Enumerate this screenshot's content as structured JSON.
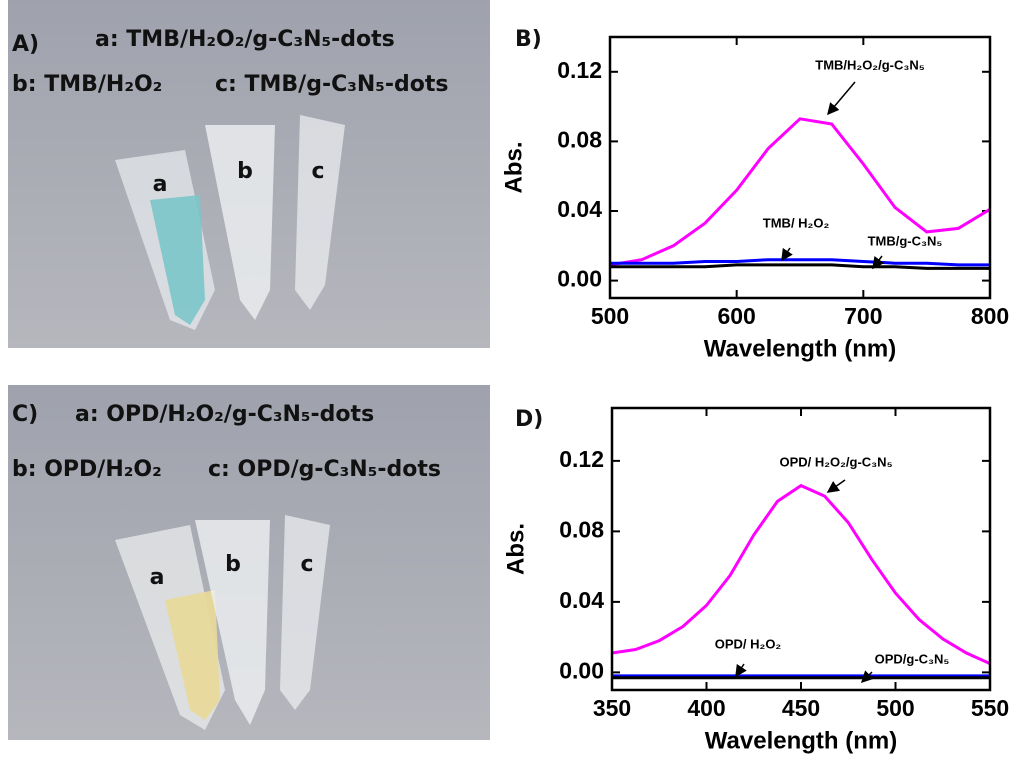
{
  "photos": [
    {
      "panel_label": "A)",
      "lines": [
        "a: TMB/H₂O₂/g-C₃N₅-dots",
        "b: TMB/H₂O₂",
        "c: TMB/g-C₃N₅-dots"
      ],
      "tubes": [
        "a",
        "b",
        "c"
      ]
    },
    {
      "panel_label": "C)",
      "lines": [
        "a: OPD/H₂O₂/g-C₃N₅-dots",
        "b: OPD/H₂O₂",
        "c: OPD/g-C₃N₅-dots"
      ],
      "tubes": [
        "a",
        "b",
        "c"
      ]
    }
  ],
  "chart_data": [
    {
      "type": "line",
      "panel_label": "B)",
      "x_label": "Wavelength (nm)",
      "y_label": "Abs.",
      "xlim": [
        500,
        800
      ],
      "ylim": [
        -0.01,
        0.14
      ],
      "xticks": [
        500,
        600,
        700,
        800
      ],
      "yticks": [
        {
          "value": 0,
          "label": "0.00"
        },
        0.04,
        0.08,
        0.12
      ],
      "x": [
        500,
        525,
        550,
        575,
        600,
        625,
        650,
        675,
        700,
        725,
        750,
        775,
        800
      ],
      "series": [
        {
          "name": "TMB/H₂O₂/g-C₃N₅",
          "color": "#ff00ff",
          "values": [
            0.009,
            0.012,
            0.02,
            0.033,
            0.052,
            0.076,
            0.093,
            0.09,
            0.067,
            0.042,
            0.028,
            0.03,
            0.041
          ]
        },
        {
          "name": "TMB/ H₂O₂",
          "color": "#0000ff",
          "values": [
            0.01,
            0.01,
            0.01,
            0.011,
            0.011,
            0.012,
            0.012,
            0.012,
            0.011,
            0.01,
            0.01,
            0.009,
            0.009
          ]
        },
        {
          "name": "TMB/g-C₃N₅",
          "color": "#000000",
          "values": [
            0.008,
            0.008,
            0.008,
            0.008,
            0.009,
            0.009,
            0.009,
            0.009,
            0.008,
            0.008,
            0.007,
            0.007,
            0.007
          ]
        }
      ]
    },
    {
      "type": "line",
      "panel_label": "D)",
      "x_label": "Wavelength (nm)",
      "y_label": "Abs.",
      "xlim": [
        350,
        550
      ],
      "ylim": [
        -0.01,
        0.15
      ],
      "xticks": [
        350,
        400,
        450,
        500,
        550
      ],
      "yticks": [
        {
          "value": 0,
          "label": "0.00"
        },
        0.04,
        0.08,
        0.12
      ],
      "x": [
        350,
        362.5,
        375,
        387.5,
        400,
        412.5,
        425,
        437.5,
        450,
        462.5,
        475,
        487.5,
        500,
        512.5,
        525,
        537.5,
        550
      ],
      "series": [
        {
          "name": "OPD/ H₂O₂/g-C₃N₅",
          "color": "#ff00ff",
          "values": [
            0.011,
            0.013,
            0.018,
            0.026,
            0.038,
            0.055,
            0.078,
            0.097,
            0.106,
            0.1,
            0.085,
            0.064,
            0.045,
            0.03,
            0.019,
            0.011,
            0.005
          ]
        },
        {
          "name": "OPD/ H₂O₂",
          "color": "#0000ff",
          "values": [
            -0.002,
            -0.002,
            -0.002,
            -0.002,
            -0.002,
            -0.002,
            -0.002,
            -0.002,
            -0.002,
            -0.002,
            -0.002,
            -0.002,
            -0.002,
            -0.002,
            -0.002,
            -0.002,
            -0.002
          ]
        },
        {
          "name": "OPD/g-C₃N₅",
          "color": "#000000",
          "values": [
            -0.003,
            -0.003,
            -0.003,
            -0.003,
            -0.003,
            -0.003,
            -0.003,
            -0.003,
            -0.003,
            -0.003,
            -0.003,
            -0.003,
            -0.003,
            -0.003,
            -0.003,
            -0.003,
            -0.003
          ]
        }
      ]
    }
  ]
}
